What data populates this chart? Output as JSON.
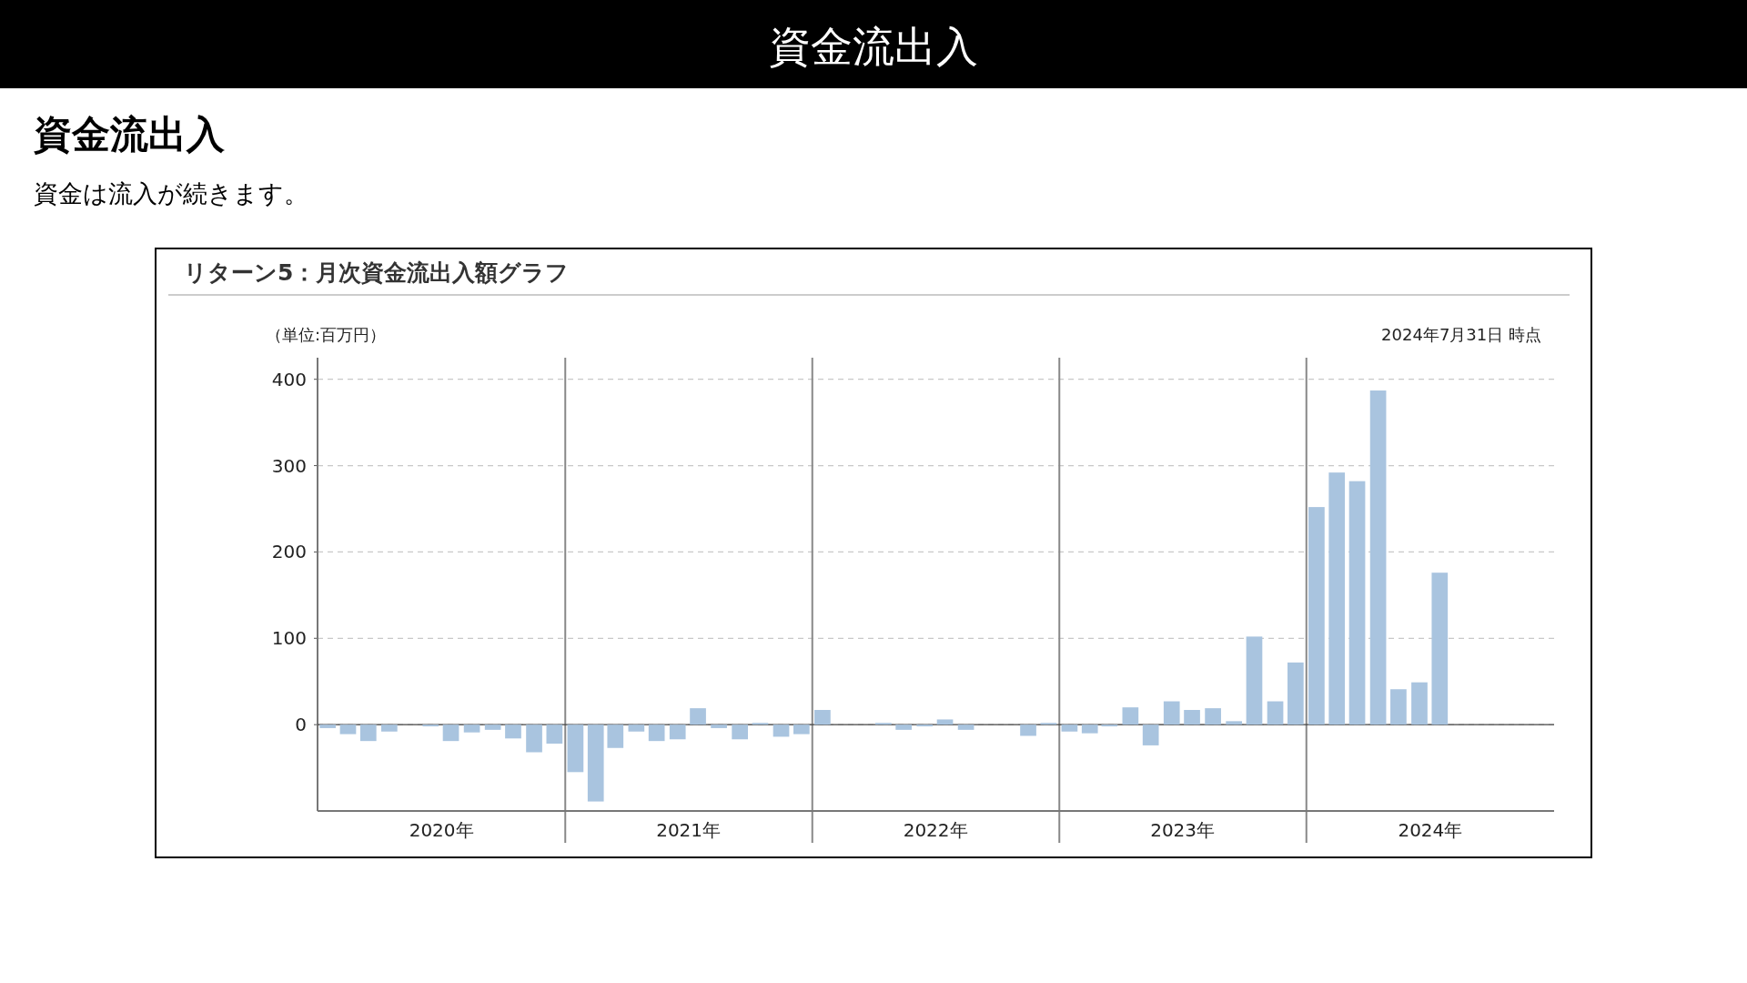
{
  "chart_data": {
    "type": "bar",
    "title": "資金流出入",
    "subtitle": "資金流出入",
    "annotations": [
      "資金は流入が続きます。",
      "リターン5：月次資金流出入額グラフ",
      "2024年7月31日 時点"
    ],
    "ylabel": "（単位:百万円）",
    "x": [
      "2020-01-16",
      "2020-02-15",
      "2020-03-16",
      "2020-04-16",
      "2020-05-16",
      "2020-06-16",
      "2020-07-16",
      "2020-08-16",
      "2020-09-16",
      "2020-10-16",
      "2020-11-16",
      "2020-12-16",
      "2021-01-16",
      "2021-02-15",
      "2021-03-16",
      "2021-04-16",
      "2021-05-16",
      "2021-06-16",
      "2021-07-16",
      "2021-08-16",
      "2021-09-16",
      "2021-10-16",
      "2021-11-16",
      "2021-12-16",
      "2022-01-16",
      "2022-02-15",
      "2022-03-16",
      "2022-04-16",
      "2022-05-16",
      "2022-06-16",
      "2022-07-16",
      "2022-08-16",
      "2022-09-16",
      "2022-10-16",
      "2022-11-16",
      "2022-12-16",
      "2023-01-16",
      "2023-02-15",
      "2023-03-16",
      "2023-04-16",
      "2023-05-16",
      "2023-06-16",
      "2023-07-16",
      "2023-08-16",
      "2023-09-16",
      "2023-10-16",
      "2023-11-16",
      "2023-12-16",
      "2024-01-16",
      "2024-02-15",
      "2024-03-16",
      "2024-04-16",
      "2024-05-16",
      "2024-06-16",
      "2024-07-16"
    ],
    "series": [
      {
        "color": "#a9c4df",
        "values": [
          -4,
          -11,
          -19,
          -8,
          0,
          -2,
          -19,
          -9,
          -6,
          -16,
          -32,
          -22,
          -55,
          -89,
          -27,
          -8,
          -19,
          -17,
          19,
          -4,
          -17,
          2,
          -14,
          -11,
          17,
          0,
          0,
          2,
          -6,
          -2,
          6,
          -6,
          0,
          0,
          -13,
          2,
          -8,
          -10,
          -2,
          20,
          -24,
          27,
          17,
          19,
          4,
          102,
          27,
          72,
          252,
          292,
          282,
          387,
          41,
          49,
          176
        ]
      }
    ],
    "xlim": [
      "2020",
      "2025"
    ],
    "xticks": [
      {
        "value": "2020-07-02",
        "label": "2020年"
      },
      {
        "value": "2021",
        "label": null
      },
      {
        "value": "2021-07-02",
        "label": "2021年"
      },
      {
        "value": "2022",
        "label": null
      },
      {
        "value": "2022-07-02",
        "label": "2022年"
      },
      {
        "value": "2023",
        "label": null
      },
      {
        "value": "2023-07-02",
        "label": "2023年"
      },
      {
        "value": "2024",
        "label": null
      },
      {
        "value": "2024-07-02",
        "label": "2024年"
      }
    ],
    "ylim": [
      -100,
      425
    ],
    "yticks": [
      0,
      100,
      200,
      300,
      400
    ],
    "grid": true
  }
}
